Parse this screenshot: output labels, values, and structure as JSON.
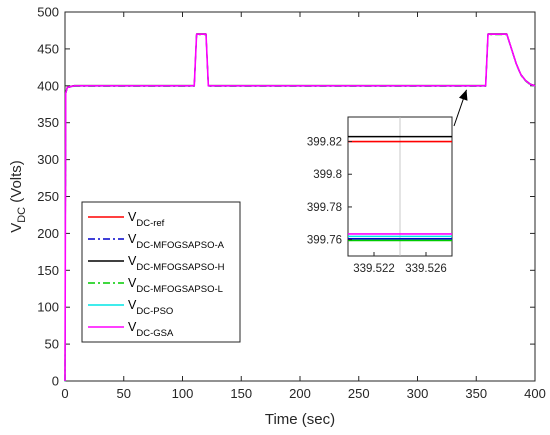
{
  "chart_data": {
    "type": "line",
    "xlabel": "Time (sec)",
    "ylabel_main": "V",
    "ylabel_sub": "DC",
    "ylabel_unit": " (Volts)",
    "xlim": [
      0,
      400
    ],
    "ylim": [
      0,
      500
    ],
    "xticks": [
      0,
      50,
      100,
      150,
      200,
      250,
      300,
      350,
      400
    ],
    "yticks": [
      0,
      50,
      100,
      150,
      200,
      250,
      300,
      350,
      400,
      450,
      500
    ],
    "grid": false,
    "legend_position": "lower-left",
    "reference_trace": {
      "x": [
        0,
        0.6,
        2,
        8,
        110,
        112,
        120,
        122,
        358,
        360,
        376,
        380,
        384,
        388,
        392,
        396,
        400
      ],
      "y": [
        0,
        390,
        398,
        400,
        400,
        470,
        470,
        400,
        400,
        470,
        470,
        450,
        430,
        415,
        407,
        402,
        400
      ]
    },
    "series": [
      {
        "name_main": "V",
        "name_sub": "DC-ref",
        "color": "#ff0000",
        "dash": "solid"
      },
      {
        "name_main": "V",
        "name_sub": "DC-MFOGSAPSO-A",
        "color": "#0000cc",
        "dash": "dashdot"
      },
      {
        "name_main": "V",
        "name_sub": "DC-MFOGSAPSO-H",
        "color": "#000000",
        "dash": "solid"
      },
      {
        "name_main": "V",
        "name_sub": "DC-MFOGSAPSO-L",
        "color": "#00cc00",
        "dash": "dashdot"
      },
      {
        "name_main": "V",
        "name_sub": "DC-PSO",
        "color": "#00e5e5",
        "dash": "solid"
      },
      {
        "name_main": "V",
        "name_sub": "DC-GSA",
        "color": "#ff00ff",
        "dash": "solid"
      }
    ],
    "inset": {
      "xlim": [
        339.52,
        339.528
      ],
      "ylim": [
        399.75,
        399.835
      ],
      "xticks": [
        339.522,
        339.526
      ],
      "xtick_labels": [
        "339.522",
        "339.526"
      ],
      "yticks": [
        399.76,
        399.78,
        399.8,
        399.82
      ],
      "ytick_labels": [
        "399.76",
        "399.78",
        "399.8",
        "399.82"
      ],
      "vline_x": 339.524,
      "lines": [
        {
          "series": "DC-MFOGSAPSO-H",
          "color": "#000000",
          "y": 399.823
        },
        {
          "series": "DC-ref",
          "color": "#ff0000",
          "y": 399.82
        },
        {
          "series": "DC-GSA",
          "color": "#ff00ff",
          "y": 399.7635
        },
        {
          "series": "DC-PSO",
          "color": "#00e5e5",
          "y": 399.762
        },
        {
          "series": "DC-MFOGSAPSO-A",
          "color": "#0000cc",
          "y": 399.7605
        },
        {
          "series": "DC-MFOGSAPSO-L",
          "color": "#00cc00",
          "y": 399.7595
        }
      ],
      "arrow_target": {
        "x": 340,
        "y": 400
      }
    }
  }
}
